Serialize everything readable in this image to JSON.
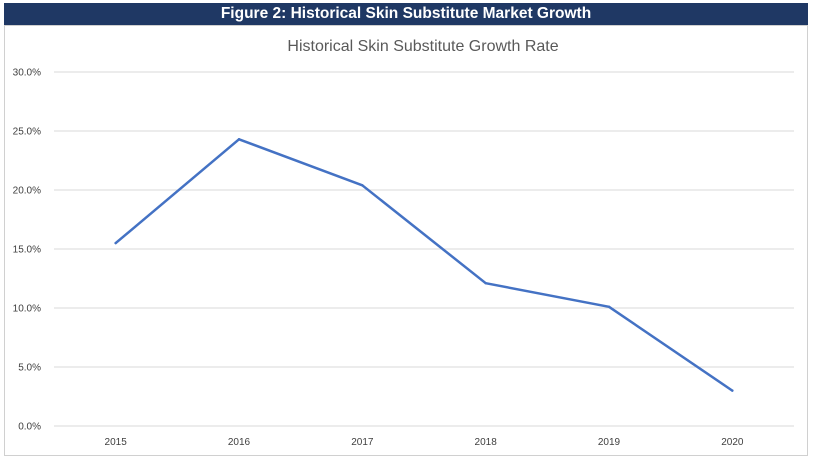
{
  "header": {
    "figure_title": "Figure 2: Historical Skin Substitute Market Growth"
  },
  "chart_data": {
    "type": "line",
    "title": "Historical Skin Substitute Growth Rate",
    "xlabel": "",
    "ylabel": "",
    "categories": [
      "2015",
      "2016",
      "2017",
      "2018",
      "2019",
      "2020"
    ],
    "series": [
      {
        "values": [
          15.5,
          24.3,
          20.4,
          12.1,
          10.1,
          3.0
        ],
        "color": "#4472c4"
      }
    ],
    "ylim": [
      0,
      30
    ],
    "yticks": [
      0,
      5,
      10,
      15,
      20,
      25,
      30
    ],
    "ytick_labels": [
      "0.0%",
      "5.0%",
      "10.0%",
      "15.0%",
      "20.0%",
      "25.0%",
      "30.0%"
    ],
    "grid": true,
    "legend": "none"
  }
}
